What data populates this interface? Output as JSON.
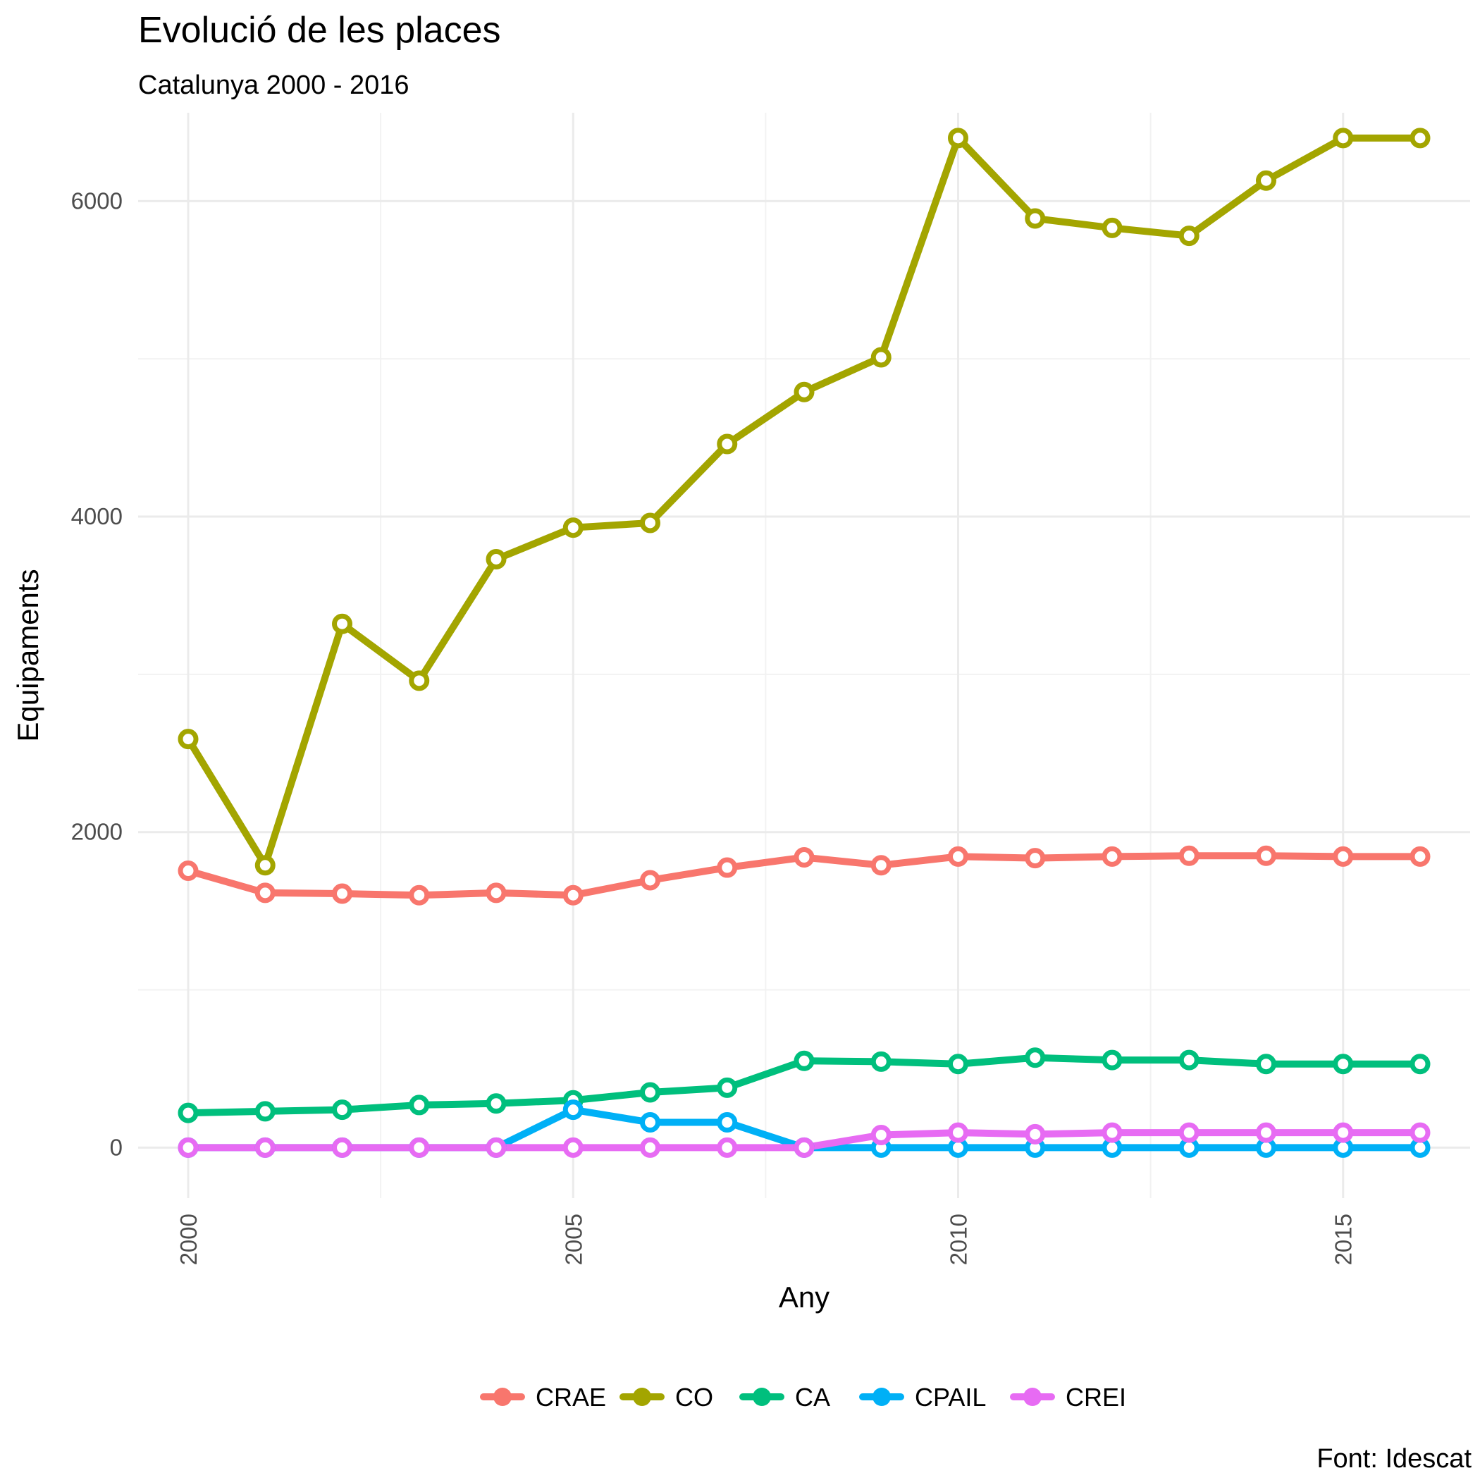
{
  "chart_data": {
    "type": "line",
    "title": "Evolució de les places",
    "subtitle": "Catalunya 2000 - 2016",
    "xlabel": "Any",
    "ylabel": "Equipaments",
    "caption": "Font: Idescat",
    "x": [
      2000,
      2001,
      2002,
      2003,
      2004,
      2005,
      2006,
      2007,
      2008,
      2009,
      2010,
      2011,
      2012,
      2013,
      2014,
      2015,
      2016
    ],
    "xticks": [
      2000,
      2005,
      2010,
      2015
    ],
    "yticks": [
      0,
      2000,
      4000,
      6000
    ],
    "xlim": [
      1999.35,
      2016.65
    ],
    "ylim": [
      -320,
      6560
    ],
    "grid": true,
    "legend_position": "bottom",
    "series": [
      {
        "name": "CRAE",
        "color": "#F8766D",
        "values": [
          1755,
          1615,
          1610,
          1600,
          1615,
          1600,
          1695,
          1775,
          1840,
          1790,
          1845,
          1835,
          1845,
          1850,
          1850,
          1845,
          1845
        ]
      },
      {
        "name": "CO",
        "color": "#A3A500",
        "values": [
          2590,
          1790,
          3320,
          2960,
          3730,
          3930,
          3960,
          4460,
          4790,
          5010,
          6400,
          5890,
          5830,
          5780,
          6130,
          6400,
          6400
        ]
      },
      {
        "name": "CA",
        "color": "#00BF7D",
        "values": [
          220,
          230,
          240,
          270,
          280,
          300,
          350,
          380,
          550,
          545,
          530,
          570,
          555,
          555,
          530,
          530,
          530
        ]
      },
      {
        "name": "CPAIL",
        "color": "#00B0F6",
        "values": [
          0,
          0,
          0,
          0,
          0,
          240,
          160,
          160,
          0,
          0,
          0,
          0,
          0,
          0,
          0,
          0,
          0
        ]
      },
      {
        "name": "CREI",
        "color": "#E76BF3",
        "values": [
          0,
          0,
          0,
          0,
          0,
          0,
          0,
          0,
          0,
          80,
          95,
          85,
          95,
          95,
          95,
          95,
          95
        ]
      }
    ]
  }
}
